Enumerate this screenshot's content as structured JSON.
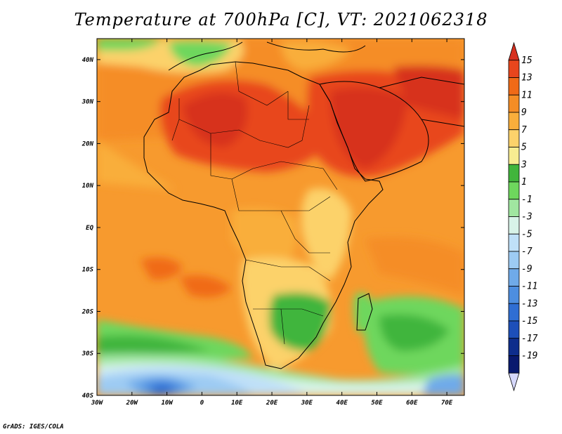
{
  "title": "Temperature at 700hPa [C], VT: 2021062318",
  "credit": "GrADS: IGES/COLA",
  "map": {
    "lon_range": [
      -30,
      75
    ],
    "lat_range": [
      -40,
      45
    ],
    "lon_ticks": [
      "30W",
      "20W",
      "10W",
      "0",
      "10E",
      "20E",
      "30E",
      "40E",
      "50E",
      "60E",
      "70E"
    ],
    "lat_ticks": [
      "40N",
      "30N",
      "20N",
      "10N",
      "EQ",
      "10S",
      "20S",
      "30S",
      "40S"
    ]
  },
  "colorbar": {
    "labels": [
      "15",
      "13",
      "11",
      "9",
      "7",
      "5",
      "3",
      "1",
      "-1",
      "-3",
      "-5",
      "-7",
      "-9",
      "-11",
      "-13",
      "-15",
      "-17",
      "-19"
    ],
    "colors": [
      "#d7301f",
      "#e8461d",
      "#f06a17",
      "#f58d25",
      "#f9ae3b",
      "#fcd26b",
      "#f8ec91",
      "#41b53c",
      "#6ed75d",
      "#a0e6a0",
      "#d8f3e8",
      "#bfe0f8",
      "#9dcbf3",
      "#6faae9",
      "#4d8ee0",
      "#2f6ed3",
      "#1d4fb9",
      "#0e2d8c",
      "#09196e",
      "#d6d8fb"
    ]
  }
}
